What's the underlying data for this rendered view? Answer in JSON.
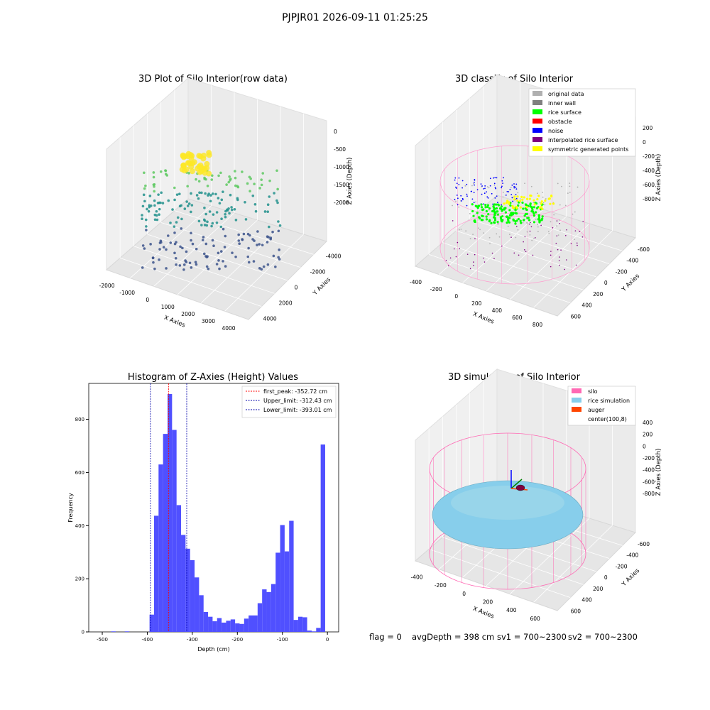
{
  "suptitle": "PJPJR01 2026-09-11 01:25:25",
  "footer": {
    "flag": "flag = 0",
    "avg_depth": "avgDepth = 398 cm",
    "sv1": "sv1 = 700~2300",
    "sv2": "sv2 = 700~2300"
  },
  "chart_data": [
    {
      "type": "scatter",
      "title": "3D Plot of Silo Interior(row data)",
      "xlabel": "X Axies",
      "ylabel": "Y Axies",
      "zlabel": "Z Axies (Depth)",
      "x_ticks": [
        "-2000",
        "-1000",
        "0",
        "1000",
        "2000",
        "3000",
        "4000"
      ],
      "y_ticks": [
        "-4000",
        "-2000",
        "0",
        "2000",
        "4000"
      ],
      "z_ticks": [
        "0",
        "-500",
        "-1000",
        "-1500",
        "-2000"
      ],
      "colormap": "viridis",
      "colors": {
        "low": "#3b528b",
        "mid": "#21918c",
        "high": "#5ec962",
        "top": "#fde725"
      }
    },
    {
      "type": "scatter",
      "title": "3D classify of Silo Interior",
      "xlabel": "X Axies",
      "ylabel": "Y Axies",
      "zlabel": "Z Axies (Depth)",
      "x_ticks": [
        "-400",
        "-200",
        "0",
        "200",
        "400",
        "600",
        "800"
      ],
      "y_ticks": [
        "-600",
        "-400",
        "-200",
        "0",
        "200",
        "400",
        "600"
      ],
      "z_ticks": [
        "200",
        "0",
        "-200",
        "-400",
        "-600",
        "-800"
      ],
      "legend_placement": "top-right",
      "legend": [
        {
          "label": "original data",
          "color": "#b0b0b0"
        },
        {
          "label": "inner wall",
          "color": "#808080"
        },
        {
          "label": "rice surface",
          "color": "#00ff00"
        },
        {
          "label": "obstacle",
          "color": "#ff0000"
        },
        {
          "label": "noise",
          "color": "#0000ff"
        },
        {
          "label": "interpolated rice surface",
          "color": "#800080"
        },
        {
          "label": "symmetric generated points",
          "color": "#ffff00"
        }
      ]
    },
    {
      "type": "bar",
      "title": "Histogram of Z-Axies (Height) Values",
      "xlabel": "Depth (cm)",
      "ylabel": "Frequency",
      "xlim": [
        -530,
        25
      ],
      "ylim": [
        0,
        935
      ],
      "x_ticks": [
        -500,
        -400,
        -300,
        -200,
        -100,
        0
      ],
      "y_ticks": [
        0,
        200,
        400,
        600,
        800
      ],
      "bar_color": "#5050ff",
      "bin_width": 10,
      "bins": [
        [
          -530,
          0
        ],
        [
          -520,
          0
        ],
        [
          -510,
          0
        ],
        [
          -500,
          0
        ],
        [
          -490,
          0
        ],
        [
          -480,
          2
        ],
        [
          -470,
          0
        ],
        [
          -460,
          0
        ],
        [
          -450,
          2
        ],
        [
          -440,
          0
        ],
        [
          -430,
          0
        ],
        [
          -420,
          0
        ],
        [
          -410,
          0
        ],
        [
          -400,
          0
        ],
        [
          -395,
          65
        ],
        [
          -385,
          437
        ],
        [
          -375,
          630
        ],
        [
          -365,
          745
        ],
        [
          -355,
          895
        ],
        [
          -345,
          760
        ],
        [
          -335,
          477
        ],
        [
          -325,
          365
        ],
        [
          -315,
          313
        ],
        [
          -305,
          270
        ],
        [
          -295,
          205
        ],
        [
          -285,
          138
        ],
        [
          -275,
          75
        ],
        [
          -265,
          57
        ],
        [
          -255,
          40
        ],
        [
          -245,
          52
        ],
        [
          -235,
          35
        ],
        [
          -225,
          42
        ],
        [
          -215,
          47
        ],
        [
          -205,
          32
        ],
        [
          -195,
          30
        ],
        [
          -185,
          50
        ],
        [
          -175,
          62
        ],
        [
          -165,
          62
        ],
        [
          -155,
          108
        ],
        [
          -145,
          160
        ],
        [
          -135,
          150
        ],
        [
          -125,
          180
        ],
        [
          -115,
          298
        ],
        [
          -105,
          402
        ],
        [
          -95,
          303
        ],
        [
          -85,
          418
        ],
        [
          -75,
          45
        ],
        [
          -65,
          57
        ],
        [
          -55,
          55
        ],
        [
          -45,
          5
        ],
        [
          -35,
          2
        ],
        [
          -25,
          15
        ],
        [
          -15,
          705
        ],
        [
          -5,
          0
        ]
      ],
      "vlines": [
        {
          "label": "first_peak: -352.72 cm",
          "x": -352.72,
          "color": "#ff0000"
        },
        {
          "label": "Upper_limit: -312.43 cm",
          "x": -312.43,
          "color": "#0000aa"
        },
        {
          "label": "Lower_limit: -393.01 cm",
          "x": -393.01,
          "color": "#0000aa"
        }
      ],
      "legend_placement": "top-right"
    },
    {
      "type": "scatter",
      "title": "3D simulation of Silo Interior",
      "xlabel": "X Axies",
      "ylabel": "Y Axies",
      "zlabel": "Z Axies (Depth)",
      "x_ticks": [
        "-400",
        "-200",
        "0",
        "200",
        "400",
        "600"
      ],
      "y_ticks": [
        "-600",
        "-400",
        "-200",
        "0",
        "200",
        "400",
        "600"
      ],
      "z_ticks": [
        "400",
        "200",
        "0",
        "-200",
        "-400",
        "-600",
        "-800"
      ],
      "legend_placement": "top-right",
      "legend": [
        {
          "label": "silo",
          "color": "#ff69b4"
        },
        {
          "label": "rice simulation",
          "color": "#87ceeb"
        },
        {
          "label": "auger",
          "color": "#ff4500"
        },
        {
          "label": "center(100,8)",
          "color": ""
        }
      ]
    }
  ]
}
